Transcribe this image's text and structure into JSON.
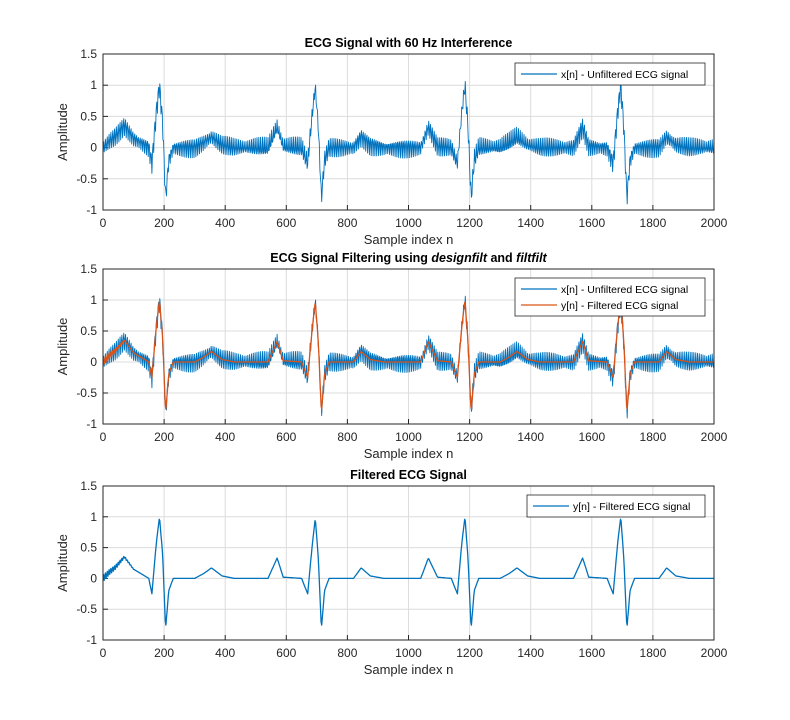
{
  "chart_data": [
    {
      "type": "line",
      "title": "ECG Signal with 60 Hz Interference",
      "xlabel": "Sample index n",
      "ylabel": "Amplitude",
      "xlim": [
        0,
        2000
      ],
      "ylim": [
        -1,
        1.5
      ],
      "xticks": [
        "0",
        "200",
        "400",
        "600",
        "800",
        "1000",
        "1200",
        "1400",
        "1600",
        "1800",
        "2000"
      ],
      "yticks": [
        "-1",
        "-0.5",
        "0",
        "0.5",
        "1",
        "1.5"
      ],
      "grid": true,
      "legend_location": "top-right",
      "series": [
        {
          "name": "x[n] - Unfiltered ECG signal",
          "kind": "noisy",
          "color": "#0072BD",
          "noise_amplitude": 0.17,
          "x": [
            0,
            20,
            40,
            70,
            100,
            150,
            160,
            175,
            185,
            195,
            205,
            215,
            230,
            300,
            330,
            355,
            390,
            430,
            540,
            570,
            590,
            650,
            670,
            685,
            695,
            705,
            715,
            725,
            740,
            820,
            845,
            875,
            920,
            1040,
            1065,
            1095,
            1140,
            1160,
            1175,
            1185,
            1195,
            1205,
            1215,
            1230,
            1300,
            1330,
            1355,
            1390,
            1430,
            1540,
            1570,
            1590,
            1650,
            1670,
            1685,
            1695,
            1705,
            1715,
            1725,
            1740,
            1820,
            1845,
            1875,
            1920,
            2000
          ],
          "y": [
            0,
            0.1,
            0.18,
            0.35,
            0.15,
            0,
            -0.25,
            0.6,
            1.0,
            0.4,
            -0.82,
            -0.2,
            0,
            0,
            0.08,
            0.17,
            0.04,
            0,
            0,
            0.33,
            0.02,
            0,
            -0.25,
            0.55,
            0.98,
            0.3,
            -0.82,
            -0.2,
            0,
            0,
            0.17,
            0.04,
            0,
            0,
            0.33,
            0.02,
            0,
            -0.25,
            0.6,
            1.0,
            0.3,
            -0.82,
            -0.2,
            0,
            0,
            0.08,
            0.17,
            0.04,
            0,
            0,
            0.33,
            0.02,
            0,
            -0.25,
            0.6,
            1.0,
            0.3,
            -0.82,
            -0.2,
            0,
            0,
            0.17,
            0.04,
            0,
            0
          ]
        }
      ]
    },
    {
      "type": "line",
      "title": "ECG Signal Filtering using",
      "title_parts": [
        "ECG Signal Filtering using ",
        "designfilt",
        " and ",
        "filtfilt"
      ],
      "xlabel": "Sample index n",
      "ylabel": "Amplitude",
      "xlim": [
        0,
        2000
      ],
      "ylim": [
        -1,
        1.5
      ],
      "xticks": [
        "0",
        "200",
        "400",
        "600",
        "800",
        "1000",
        "1200",
        "1400",
        "1600",
        "1800",
        "2000"
      ],
      "yticks": [
        "-1",
        "-0.5",
        "0",
        "0.5",
        "1",
        "1.5"
      ],
      "grid": true,
      "legend_location": "top-right",
      "series": [
        {
          "name": "x[n] - Unfiltered ECG signal",
          "kind": "noisy",
          "color": "#0072BD",
          "noise_amplitude": 0.17,
          "x": [
            0,
            20,
            40,
            70,
            100,
            150,
            160,
            175,
            185,
            195,
            205,
            215,
            230,
            300,
            330,
            355,
            390,
            430,
            540,
            570,
            590,
            650,
            670,
            685,
            695,
            705,
            715,
            725,
            740,
            820,
            845,
            875,
            920,
            1040,
            1065,
            1095,
            1140,
            1160,
            1175,
            1185,
            1195,
            1205,
            1215,
            1230,
            1300,
            1330,
            1355,
            1390,
            1430,
            1540,
            1570,
            1590,
            1650,
            1670,
            1685,
            1695,
            1705,
            1715,
            1725,
            1740,
            1820,
            1845,
            1875,
            1920,
            2000
          ],
          "y": [
            0,
            0.1,
            0.18,
            0.35,
            0.15,
            0,
            -0.25,
            0.6,
            1.0,
            0.4,
            -0.82,
            -0.2,
            0,
            0,
            0.08,
            0.17,
            0.04,
            0,
            0,
            0.33,
            0.02,
            0,
            -0.25,
            0.55,
            0.98,
            0.3,
            -0.82,
            -0.2,
            0,
            0,
            0.17,
            0.04,
            0,
            0,
            0.33,
            0.02,
            0,
            -0.25,
            0.6,
            1.0,
            0.3,
            -0.82,
            -0.2,
            0,
            0,
            0.08,
            0.17,
            0.04,
            0,
            0,
            0.33,
            0.02,
            0,
            -0.25,
            0.6,
            1.0,
            0.3,
            -0.82,
            -0.2,
            0,
            0,
            0.17,
            0.04,
            0,
            0
          ]
        },
        {
          "name": "y[n] - Filtered ECG signal",
          "kind": "smooth",
          "color": "#D95319",
          "start_ripple": 0.06,
          "x": [
            0,
            20,
            40,
            70,
            100,
            150,
            160,
            175,
            185,
            195,
            205,
            215,
            230,
            300,
            330,
            355,
            390,
            430,
            540,
            570,
            590,
            650,
            670,
            685,
            695,
            705,
            715,
            725,
            740,
            820,
            845,
            875,
            920,
            1040,
            1065,
            1095,
            1140,
            1160,
            1175,
            1185,
            1195,
            1205,
            1215,
            1230,
            1300,
            1330,
            1355,
            1390,
            1430,
            1540,
            1570,
            1590,
            1650,
            1670,
            1685,
            1695,
            1705,
            1715,
            1725,
            1740,
            1820,
            1845,
            1875,
            1920,
            2000
          ],
          "y": [
            0,
            0.1,
            0.18,
            0.35,
            0.15,
            0,
            -0.25,
            0.6,
            1.0,
            0.4,
            -0.82,
            -0.2,
            0,
            0,
            0.08,
            0.17,
            0.04,
            0,
            0,
            0.33,
            0.02,
            0,
            -0.25,
            0.55,
            0.98,
            0.3,
            -0.82,
            -0.2,
            0,
            0,
            0.17,
            0.04,
            0,
            0,
            0.33,
            0.02,
            0,
            -0.25,
            0.6,
            1.0,
            0.3,
            -0.82,
            -0.2,
            0,
            0,
            0.08,
            0.17,
            0.04,
            0,
            0,
            0.33,
            0.02,
            0,
            -0.25,
            0.6,
            1.0,
            0.3,
            -0.82,
            -0.2,
            0,
            0,
            0.17,
            0.04,
            0,
            0
          ]
        }
      ]
    },
    {
      "type": "line",
      "title": "Filtered ECG Signal",
      "xlabel": "Sample index n",
      "ylabel": "Amplitude",
      "xlim": [
        0,
        2000
      ],
      "ylim": [
        -1,
        1.5
      ],
      "xticks": [
        "0",
        "200",
        "400",
        "600",
        "800",
        "1000",
        "1200",
        "1400",
        "1600",
        "1800",
        "2000"
      ],
      "yticks": [
        "-1",
        "-0.5",
        "0",
        "0.5",
        "1",
        "1.5"
      ],
      "grid": true,
      "legend_location": "top-right",
      "series": [
        {
          "name": "y[n] - Filtered ECG signal",
          "kind": "smooth",
          "color": "#0072BD",
          "start_ripple": 0.06,
          "x": [
            0,
            20,
            40,
            70,
            100,
            150,
            160,
            175,
            185,
            195,
            205,
            215,
            230,
            300,
            330,
            355,
            390,
            430,
            540,
            570,
            590,
            650,
            670,
            685,
            695,
            705,
            715,
            725,
            740,
            820,
            845,
            875,
            920,
            1040,
            1065,
            1095,
            1140,
            1160,
            1175,
            1185,
            1195,
            1205,
            1215,
            1230,
            1300,
            1330,
            1355,
            1390,
            1430,
            1540,
            1570,
            1590,
            1650,
            1670,
            1685,
            1695,
            1705,
            1715,
            1725,
            1740,
            1820,
            1845,
            1875,
            1920,
            2000
          ],
          "y": [
            0,
            0.1,
            0.18,
            0.35,
            0.15,
            0,
            -0.25,
            0.6,
            1.0,
            0.4,
            -0.82,
            -0.2,
            0,
            0,
            0.08,
            0.17,
            0.04,
            0,
            0,
            0.33,
            0.02,
            0,
            -0.25,
            0.55,
            0.98,
            0.3,
            -0.82,
            -0.2,
            0,
            0,
            0.17,
            0.04,
            0,
            0,
            0.33,
            0.02,
            0,
            -0.25,
            0.6,
            1.0,
            0.3,
            -0.82,
            -0.2,
            0,
            0,
            0.08,
            0.17,
            0.04,
            0,
            0,
            0.33,
            0.02,
            0,
            -0.25,
            0.6,
            1.0,
            0.3,
            -0.82,
            -0.2,
            0,
            0,
            0.17,
            0.04,
            0,
            0
          ]
        }
      ]
    }
  ]
}
